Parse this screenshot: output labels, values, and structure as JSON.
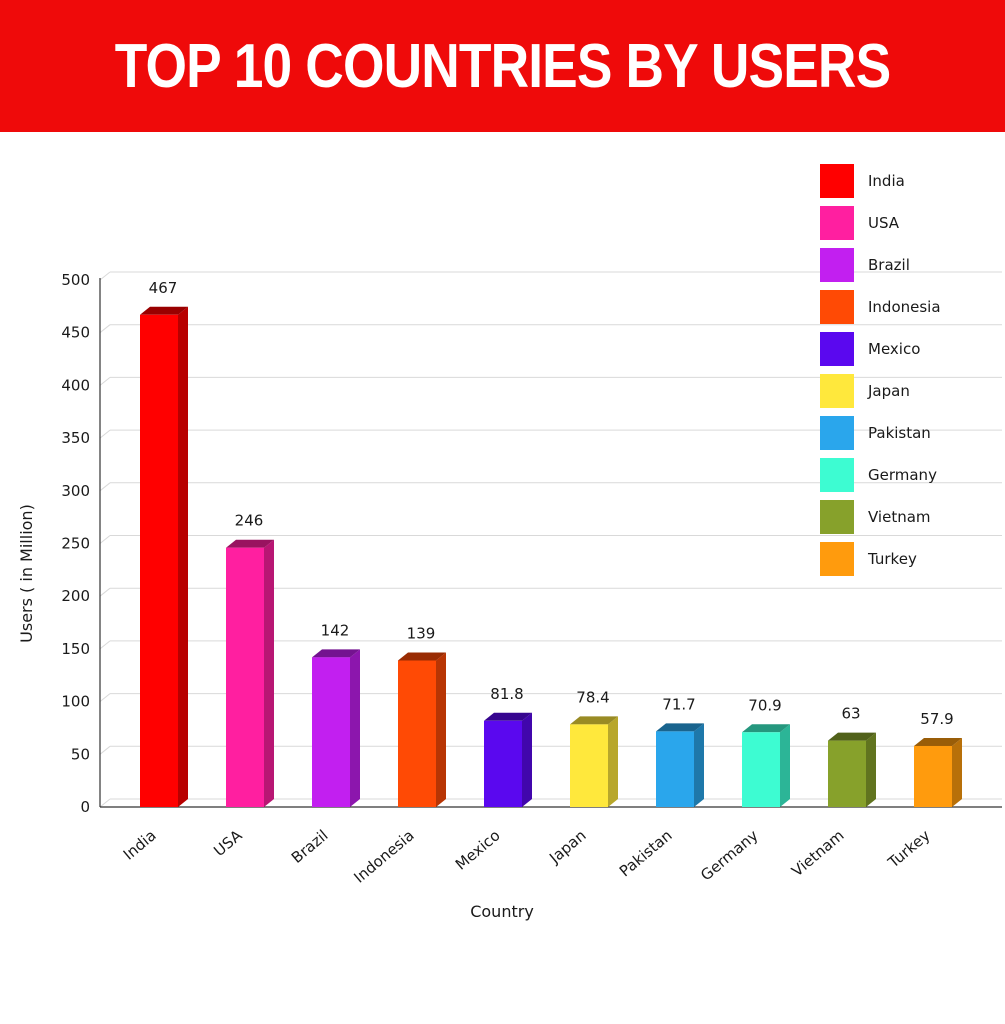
{
  "header": {
    "title": "TOP 10 COUNTRIES BY USERS"
  },
  "chart_data": {
    "type": "bar",
    "title": "TOP 10 COUNTRIES BY USERS",
    "xlabel": "Country",
    "ylabel": "Users ( in Million)",
    "ylim": [
      0,
      500
    ],
    "yticks": [
      0,
      50,
      100,
      150,
      200,
      250,
      300,
      350,
      400,
      450,
      500
    ],
    "categories": [
      "India",
      "USA",
      "Brazil",
      "Indonesia",
      "Mexico",
      "Japan",
      "Pakistan",
      "Germany",
      "Vietnam",
      "Turkey"
    ],
    "values": [
      467,
      246,
      142,
      139,
      81.8,
      78.4,
      71.7,
      70.9,
      63,
      57.9
    ],
    "data_labels": [
      "467",
      "246",
      "142",
      "139",
      "81.8",
      "78.4",
      "71.7",
      "70.9",
      "63",
      "57.9"
    ],
    "colors": [
      "#ff0000",
      "#ff1fa0",
      "#c21ff0",
      "#ff4a05",
      "#5a08ef",
      "#ffe83c",
      "#2aa6ec",
      "#3dfcd2",
      "#87a12b",
      "#ff9b0d"
    ],
    "grid": true,
    "legend": {
      "position": "top-right",
      "entries": [
        "India",
        "USA",
        "Brazil",
        "Indonesia",
        "Mexico",
        "Japan",
        "Pakistan",
        "Germany",
        "Vietnam",
        "Turkey"
      ]
    }
  }
}
